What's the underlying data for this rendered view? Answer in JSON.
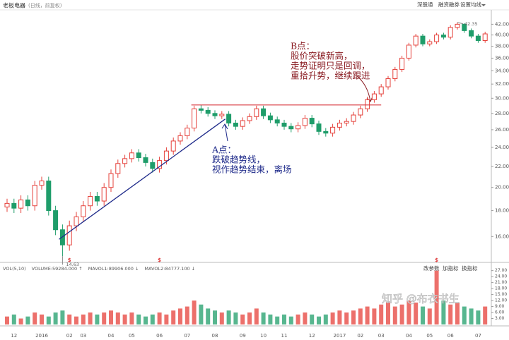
{
  "header": {
    "stock": "老板电器",
    "mode": "(日线，前复权)",
    "tools": [
      "深股通",
      "融资融券",
      "设置均线"
    ]
  },
  "chart_data": [
    {
      "type": "candlestick",
      "categories": [
        null,
        "12",
        null,
        null,
        null,
        "2016",
        null,
        null,
        null,
        "02",
        null,
        "03",
        null,
        null,
        null,
        "04",
        null,
        null,
        "05",
        null,
        null,
        null,
        "06",
        null,
        null,
        null,
        "07",
        null,
        null,
        null,
        "08",
        null,
        null,
        null,
        "09",
        null,
        null,
        "10",
        null,
        null,
        "11",
        null,
        null,
        null,
        "12",
        null,
        null,
        null,
        "2017",
        null,
        null,
        "02",
        null,
        null,
        "03",
        null,
        null,
        null,
        "04",
        null,
        null,
        "05",
        null,
        null,
        "06",
        null,
        null,
        null,
        "07",
        null
      ],
      "open": [
        18.3,
        18.6,
        18.2,
        18.9,
        18.4,
        20.2,
        20.6,
        18.0,
        16.5,
        15.4,
        16.8,
        17.5,
        18.4,
        19.2,
        18.8,
        20.0,
        21.3,
        22.3,
        22.8,
        23.4,
        22.9,
        22.4,
        21.8,
        22.6,
        23.6,
        24.7,
        25.3,
        26.2,
        28.6,
        28.4,
        28.0,
        27.7,
        27.9,
        26.8,
        26.4,
        27.1,
        27.6,
        28.6,
        27.7,
        27.2,
        26.8,
        26.4,
        26.1,
        26.5,
        27.4,
        26.7,
        25.8,
        25.6,
        26.3,
        26.8,
        27.0,
        27.8,
        28.6,
        29.8,
        30.6,
        31.6,
        32.8,
        34.2,
        36.0,
        38.2,
        39.8,
        38.4,
        38.8,
        40.0,
        39.6,
        41.4,
        42.0,
        40.8,
        39.8,
        39.0
      ],
      "high": [
        19.0,
        19.0,
        19.3,
        19.3,
        20.6,
        21.0,
        21.0,
        18.4,
        16.9,
        17.2,
        17.9,
        18.8,
        19.6,
        19.6,
        20.4,
        21.7,
        22.7,
        23.2,
        23.8,
        23.8,
        23.3,
        22.8,
        23.0,
        24.0,
        25.1,
        25.7,
        26.6,
        29.0,
        29.1,
        28.8,
        28.4,
        28.3,
        28.3,
        27.2,
        27.5,
        28.0,
        29.0,
        29.0,
        28.1,
        27.6,
        27.2,
        26.8,
        26.9,
        27.8,
        27.8,
        27.1,
        26.2,
        26.7,
        27.2,
        27.4,
        28.2,
        29.0,
        30.2,
        31.0,
        32.0,
        33.2,
        34.6,
        36.4,
        38.6,
        40.2,
        40.2,
        39.2,
        40.4,
        40.4,
        41.8,
        42.35,
        42.2,
        41.2,
        40.2,
        40.6
      ],
      "low": [
        17.9,
        17.8,
        17.8,
        18.0,
        18.0,
        19.8,
        17.6,
        16.1,
        14.63,
        15.0,
        16.4,
        17.1,
        18.0,
        18.4,
        18.4,
        19.6,
        20.9,
        21.9,
        22.4,
        22.5,
        22.0,
        21.4,
        21.4,
        22.2,
        23.2,
        24.3,
        24.9,
        25.8,
        28.0,
        27.6,
        27.3,
        27.3,
        26.4,
        26.0,
        26.0,
        26.7,
        27.2,
        27.3,
        26.8,
        26.4,
        26.0,
        25.7,
        25.7,
        26.1,
        26.3,
        25.4,
        25.2,
        25.2,
        25.9,
        26.4,
        26.6,
        27.4,
        28.2,
        29.4,
        30.2,
        31.2,
        32.4,
        33.8,
        35.6,
        37.8,
        38.0,
        38.0,
        38.4,
        39.2,
        39.2,
        41.0,
        40.4,
        39.4,
        38.6,
        38.6
      ],
      "close": [
        18.6,
        18.2,
        18.9,
        18.4,
        20.2,
        20.6,
        18.0,
        16.5,
        15.4,
        16.8,
        17.5,
        18.4,
        19.2,
        18.8,
        20.0,
        21.3,
        22.3,
        22.8,
        23.4,
        22.9,
        22.4,
        21.8,
        22.6,
        23.6,
        24.7,
        25.3,
        26.2,
        28.6,
        28.4,
        28.0,
        27.7,
        27.9,
        26.8,
        26.4,
        27.1,
        27.6,
        28.6,
        27.7,
        27.2,
        26.8,
        26.4,
        26.1,
        26.5,
        27.4,
        26.7,
        25.8,
        25.6,
        26.3,
        26.8,
        27.0,
        27.8,
        28.6,
        29.8,
        30.6,
        31.6,
        32.8,
        34.2,
        36.0,
        38.2,
        39.8,
        38.4,
        38.8,
        40.0,
        39.6,
        41.4,
        42.0,
        40.8,
        39.8,
        39.0,
        40.2
      ],
      "up_color": "#e5403a",
      "down_color": "#1f9d6a",
      "log_scale": true,
      "grid": false,
      "ylim": [
        14.5,
        43.7
      ],
      "yticks": [
        {
          "value": 16,
          "label": "16.00"
        },
        {
          "value": 18,
          "label": "18.00"
        },
        {
          "value": 20,
          "label": "20.00"
        },
        {
          "value": 22,
          "label": "22.00"
        },
        {
          "value": 24,
          "label": "24.00"
        },
        {
          "value": 26,
          "label": "26.00"
        },
        {
          "value": 28,
          "label": "28.00"
        },
        {
          "value": 30,
          "label": "30.00"
        },
        {
          "value": 32,
          "label": "32.00"
        },
        {
          "value": 34,
          "label": "34.00"
        },
        {
          "value": 36,
          "label": "36.00"
        },
        {
          "value": 38,
          "label": "38.00"
        },
        {
          "value": 40,
          "label": "40.00"
        },
        {
          "value": 42,
          "label": "42.00"
        }
      ],
      "max_label": "42.35",
      "min_label": "14.63",
      "dividend_marks": [
        "$",
        "$",
        "$"
      ],
      "resistance": 29.1,
      "resistance_color": "#d9363e",
      "trendline": [
        15.8,
        27.3
      ],
      "trendline_color": "#1e2a8a",
      "notes": [
        {
          "title": "B点：",
          "lines": [
            "股价突破新高，",
            "走势证明只是回调，",
            "重拾升势，继续跟进"
          ]
        },
        {
          "title": "A点：",
          "lines": [
            "跌破趋势线，",
            "视作趋势结束，离场"
          ]
        }
      ]
    },
    {
      "type": "bar",
      "legend": [
        "VOL(5,10)",
        "VOLUME:59284.000 ↑",
        "MAVOL1:89906.000 ↓",
        "MAVOL2:84777.100 ↓"
      ],
      "tools": [
        "改参数",
        "加指标",
        "换指标"
      ],
      "values": [
        4,
        5,
        3,
        4,
        6,
        5,
        4,
        6,
        7,
        5,
        4,
        5,
        6,
        5,
        6,
        7,
        6,
        5,
        6,
        5,
        4,
        5,
        6,
        5,
        7,
        8,
        9,
        12,
        10,
        8,
        7,
        6,
        7,
        6,
        5,
        6,
        8,
        6,
        5,
        4,
        5,
        4,
        5,
        6,
        5,
        4,
        5,
        6,
        7,
        6,
        7,
        8,
        9,
        8,
        10,
        11,
        9,
        10,
        12,
        11,
        9,
        8,
        27,
        12,
        10,
        11,
        9,
        8,
        7,
        9
      ],
      "ylim": [
        0,
        29
      ],
      "yticks": [
        {
          "value": 27,
          "label": "27.00"
        },
        {
          "value": 24,
          "label": "24.00"
        },
        {
          "value": 21,
          "label": "21.00"
        },
        {
          "value": 18,
          "label": "18.00"
        },
        {
          "value": 15,
          "label": "15.00"
        },
        {
          "value": 12,
          "label": "12.00"
        },
        {
          "value": 9,
          "label": "9.00"
        },
        {
          "value": 6,
          "label": "6.00"
        },
        {
          "value": 3,
          "label": "3.00"
        }
      ]
    }
  ],
  "watermark": "知乎 @布衣书生"
}
